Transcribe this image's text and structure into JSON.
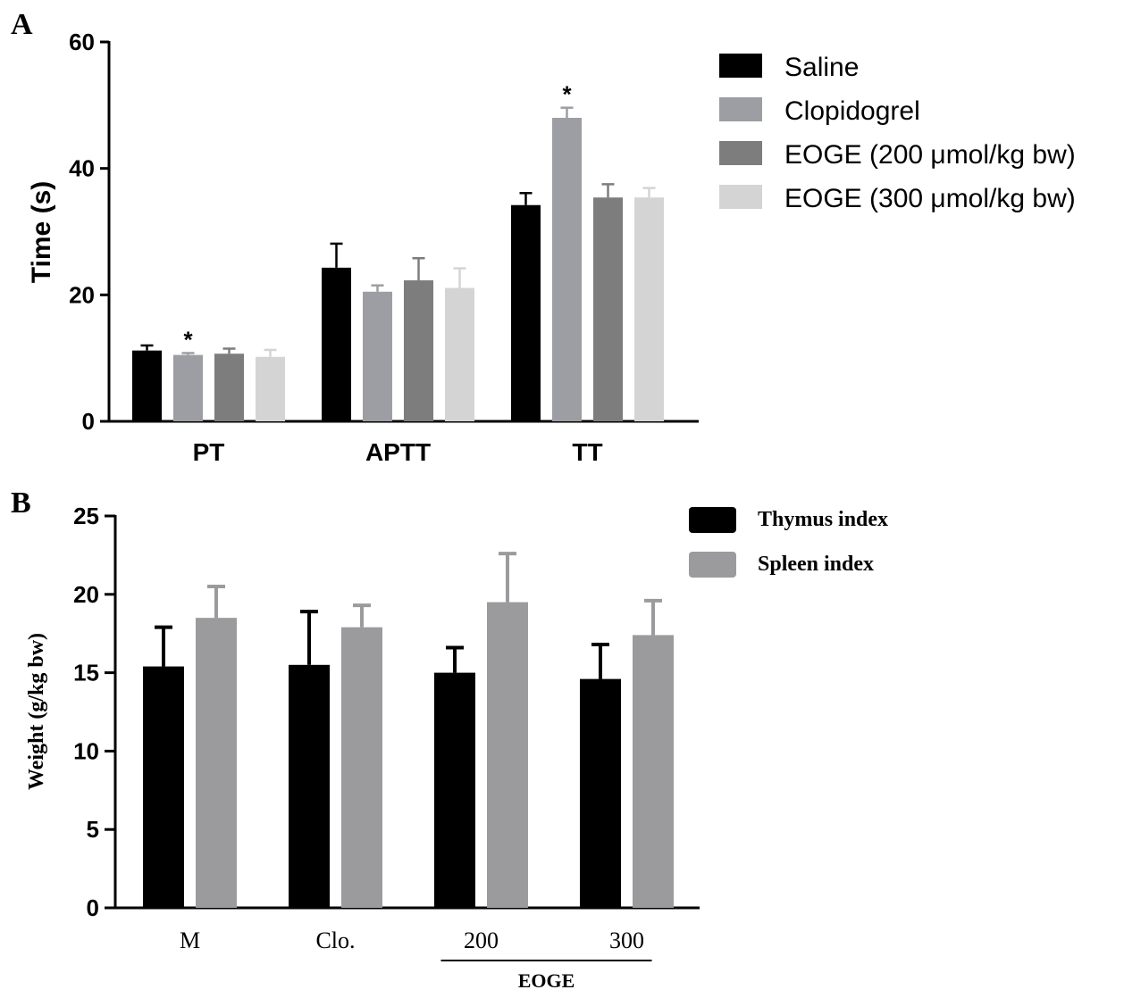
{
  "chart_data": [
    {
      "panel": "A",
      "type": "bar",
      "title": "",
      "xlabel": "",
      "ylabel": "Time (s)",
      "ylim": [
        0,
        60
      ],
      "yticks": [
        0,
        20,
        40,
        60
      ],
      "categories": [
        "PT",
        "APTT",
        "TT"
      ],
      "series": [
        {
          "name": "Saline",
          "color": "#000000",
          "values": [
            11.2,
            24.3,
            34.2
          ],
          "errors": [
            0.8,
            3.8,
            1.9
          ],
          "stars": [
            "",
            "",
            ""
          ]
        },
        {
          "name": "Clopidogrel",
          "color": "#9d9ea3",
          "values": [
            10.5,
            20.5,
            48.0
          ],
          "errors": [
            0.3,
            1.0,
            1.6
          ],
          "stars": [
            "*",
            "",
            "*"
          ]
        },
        {
          "name": "EOGE (200 μmol/kg bw)",
          "color": "#7d7d7d",
          "values": [
            10.7,
            22.3,
            35.4
          ],
          "errors": [
            0.8,
            3.5,
            2.1
          ],
          "stars": [
            "",
            "",
            ""
          ]
        },
        {
          "name": "EOGE (300 μmol/kg bw)",
          "color": "#d4d4d4",
          "values": [
            10.2,
            21.1,
            35.4
          ],
          "errors": [
            1.1,
            3.1,
            1.5
          ],
          "stars": [
            "",
            "",
            ""
          ]
        }
      ],
      "legend_position": "right"
    },
    {
      "panel": "B",
      "type": "bar",
      "title": "",
      "xlabel": "",
      "ylabel": "Weight (g/kg bw)",
      "ylim": [
        0,
        25
      ],
      "yticks": [
        0,
        5,
        10,
        15,
        20,
        25
      ],
      "categories": [
        "M",
        "Clo.",
        "200",
        "300"
      ],
      "group_label": {
        "text": "EOGE",
        "spans": [
          "200",
          "300"
        ]
      },
      "series": [
        {
          "name": "Thymus index",
          "color": "#000000",
          "values": [
            15.4,
            15.5,
            15.0,
            14.6
          ],
          "errors": [
            2.5,
            3.4,
            1.6,
            2.2
          ]
        },
        {
          "name": "Spleen index",
          "color": "#9b9b9d",
          "values": [
            18.5,
            17.9,
            19.5,
            17.4
          ],
          "errors": [
            2.0,
            1.4,
            3.1,
            2.2
          ]
        }
      ],
      "legend_position": "top-right"
    }
  ]
}
